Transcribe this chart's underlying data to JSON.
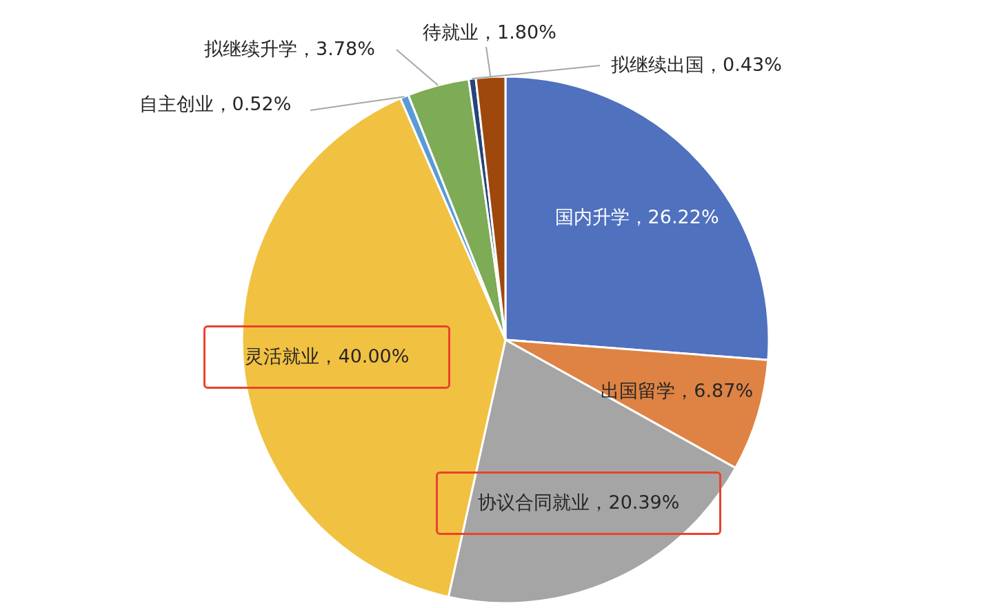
{
  "chart_data": {
    "type": "pie",
    "categories": [
      "国内升学",
      "出国留学",
      "协议合同就业",
      "灵活就业",
      "自主创业",
      "拟继续升学",
      "拟继续出国",
      "待就业"
    ],
    "values": [
      26.22,
      6.87,
      20.39,
      40.0,
      0.52,
      3.78,
      0.43,
      1.8
    ],
    "value_labels": [
      "26.22%",
      "6.87%",
      "20.39%",
      "40.00%",
      "0.52%",
      "3.78%",
      "0.43%",
      "1.80%"
    ],
    "colors": [
      "#4f71be",
      "#de8344",
      "#a5a5a5",
      "#f1c142",
      "#5b9bd5",
      "#7eab55",
      "#264478",
      "#9e480e"
    ]
  }
}
